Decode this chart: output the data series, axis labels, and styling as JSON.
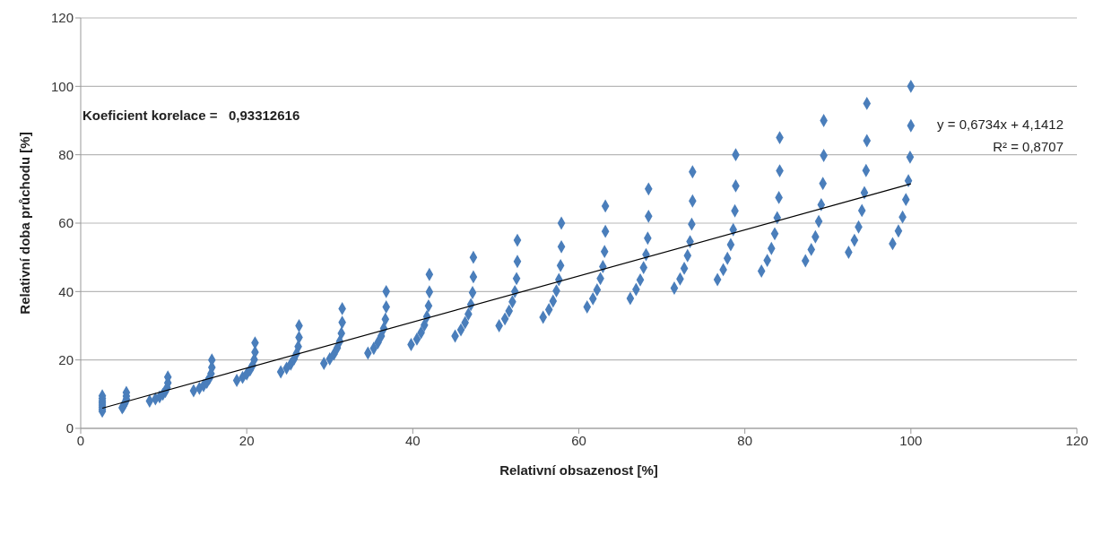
{
  "chart_data": {
    "type": "scatter",
    "xlabel": "Relativní obsazenost [%]",
    "ylabel": "Relativní doba průchodu [%]",
    "annotations": [
      "Koeficient korelace =   0,93312616",
      "y = 0,6734x + 4,1412",
      "R² = 0,8707"
    ],
    "xlim": [
      0,
      120
    ],
    "xticks": [
      0,
      20,
      40,
      60,
      80,
      100,
      120
    ],
    "ylim": [
      0,
      120
    ],
    "yticks": [
      0,
      20,
      40,
      60,
      80,
      100,
      120
    ],
    "grid": "y",
    "series": [
      {
        "color": "#4a7ebb",
        "marker": "diamond",
        "x": [
          2.6,
          2.6,
          2.6,
          2.6,
          2.6,
          2.6,
          2.6,
          2.6,
          5.0,
          5.1,
          5.2,
          5.3,
          5.4,
          5.5,
          5.5,
          5.5,
          8.3,
          9.0,
          9.5,
          9.9,
          10.2,
          10.4,
          10.5,
          10.5,
          13.6,
          14.3,
          14.8,
          15.2,
          15.5,
          15.7,
          15.8,
          15.8,
          18.8,
          19.5,
          20,
          20.4,
          20.7,
          20.9,
          21,
          21,
          24.1,
          24.8,
          25.3,
          25.7,
          26,
          26.2,
          26.3,
          26.3,
          29.3,
          30,
          30.5,
          30.9,
          31.2,
          31.4,
          31.5,
          31.5,
          34.6,
          35.3,
          35.8,
          36.2,
          36.5,
          36.7,
          36.8,
          36.8,
          39.8,
          40.5,
          41,
          41.4,
          41.7,
          41.9,
          42,
          42,
          45.1,
          45.8,
          46.3,
          46.7,
          47,
          47.2,
          47.3,
          47.3,
          50.4,
          51.1,
          51.6,
          52,
          52.3,
          52.5,
          52.6,
          52.6,
          55.7,
          56.4,
          56.9,
          57.3,
          57.6,
          57.8,
          57.9,
          57.9,
          61,
          61.7,
          62.2,
          62.6,
          62.9,
          63.1,
          63.2,
          63.2,
          66.2,
          66.9,
          67.4,
          67.8,
          68.1,
          68.3,
          68.4,
          68.4,
          71.5,
          72.2,
          72.7,
          73.1,
          73.4,
          73.6,
          73.7,
          73.7,
          76.7,
          77.4,
          77.9,
          78.3,
          78.6,
          78.8,
          78.9,
          78.9,
          82,
          82.7,
          83.2,
          83.6,
          83.9,
          84.1,
          84.2,
          84.2,
          87.3,
          88,
          88.5,
          88.9,
          89.2,
          89.4,
          89.5,
          89.5,
          92.5,
          93.2,
          93.7,
          94.1,
          94.4,
          94.6,
          94.7,
          94.7,
          97.8,
          98.5,
          99,
          99.4,
          99.7,
          99.9,
          100,
          100
        ],
        "values": [
          5,
          5.6,
          6.2,
          6.8,
          7.4,
          8,
          8.7,
          9.5,
          6,
          6.4,
          6.8,
          7.3,
          7.8,
          8.5,
          9.4,
          10.5,
          8,
          8.6,
          9.2,
          10,
          10.8,
          11.9,
          13.3,
          15,
          11,
          11.7,
          12.5,
          13.5,
          14.6,
          16,
          17.8,
          20,
          14,
          14.9,
          15.9,
          17.1,
          18.4,
          20.1,
          22.3,
          25,
          16.5,
          17.6,
          18.8,
          20.3,
          21.9,
          23.9,
          26.6,
          30,
          19,
          20.3,
          21.7,
          23.5,
          25.4,
          27.8,
          31,
          35,
          22,
          23.4,
          25.1,
          27,
          29.2,
          31.9,
          35.5,
          40,
          24.5,
          26.1,
          28,
          30.2,
          32.7,
          35.8,
          39.9,
          45,
          27,
          28.8,
          30.9,
          33.4,
          36.2,
          39.7,
          44.3,
          50,
          30,
          32,
          34.3,
          37,
          40,
          43.8,
          48.8,
          55,
          32.5,
          34.7,
          37.2,
          40.2,
          43.5,
          47.6,
          53.1,
          60,
          35.5,
          37.9,
          40.5,
          43.8,
          47.3,
          51.7,
          57.6,
          65,
          38,
          40.6,
          43.4,
          47,
          50.8,
          55.6,
          62,
          70,
          41,
          43.7,
          46.8,
          50.5,
          54.6,
          59.7,
          66.5,
          75,
          43.5,
          46.4,
          49.7,
          53.7,
          58.1,
          63.6,
          70.9,
          80,
          46,
          49.1,
          52.6,
          56.9,
          61.6,
          67.5,
          75.3,
          85,
          49,
          52.3,
          56,
          60.5,
          65.4,
          71.6,
          79.8,
          90,
          51.5,
          55,
          58.9,
          63.7,
          68.9,
          75.4,
          84.1,
          95,
          54,
          57.7,
          61.8,
          66.9,
          72.4,
          79.3,
          88.5,
          100
        ]
      },
      {
        "type": "line",
        "color": "#000000",
        "marker": "none",
        "x": [
          2.6,
          100
        ],
        "values": [
          5.9,
          71.5
        ]
      }
    ]
  }
}
